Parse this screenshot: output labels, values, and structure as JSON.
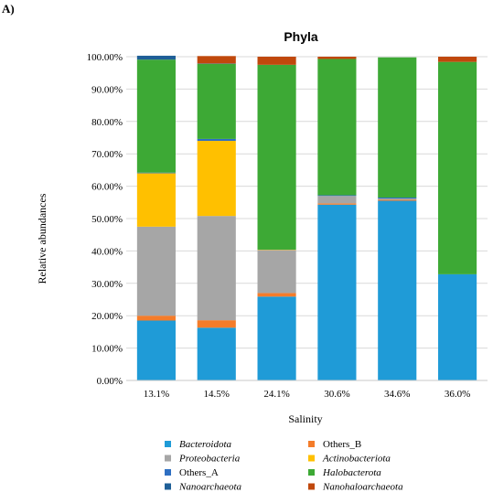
{
  "panel_label": "A)",
  "chart_data": {
    "type": "bar",
    "stacked": true,
    "title": "Phyla",
    "xlabel": "Salinity",
    "ylabel": "Relative abundances",
    "ylim": [
      0,
      100
    ],
    "y_ticks": [
      "0.00%",
      "10.00%",
      "20.00%",
      "30.00%",
      "40.00%",
      "50.00%",
      "60.00%",
      "70.00%",
      "80.00%",
      "90.00%",
      "100.00%"
    ],
    "categories": [
      "13.1%",
      "14.5%",
      "24.1%",
      "30.6%",
      "34.6%",
      "36.0%"
    ],
    "grid": true,
    "legend_position": "bottom",
    "series": [
      {
        "name": "Bacteroidota",
        "italic": true,
        "color": "#1F9BD7",
        "values": [
          18.5,
          16.3,
          25.9,
          54.3,
          55.5,
          32.8
        ]
      },
      {
        "name": "Others_B",
        "italic": false,
        "color": "#F47C2A",
        "values": [
          1.5,
          2.3,
          1.1,
          0.4,
          0.3,
          0.0
        ]
      },
      {
        "name": "Proteobacteria",
        "italic": true,
        "color": "#A6A6A6",
        "values": [
          27.5,
          32.2,
          13.3,
          2.3,
          0.4,
          0.0
        ]
      },
      {
        "name": "Actinobacteriota",
        "italic": true,
        "color": "#FFC000",
        "values": [
          16.5,
          23.2,
          0.1,
          0.0,
          0.0,
          0.0
        ]
      },
      {
        "name": "Others_A",
        "italic": false,
        "color": "#2E6FC2",
        "values": [
          0.2,
          0.6,
          0.0,
          0.2,
          0.3,
          0.0
        ]
      },
      {
        "name": "Halobacterota",
        "italic": true,
        "color": "#3DA935",
        "values": [
          34.9,
          23.2,
          57.1,
          42.1,
          43.3,
          65.6
        ]
      },
      {
        "name": "Nanoarchaeota",
        "italic": true,
        "color": "#1F5F97",
        "values": [
          1.2,
          0.1,
          0.0,
          0.0,
          0.0,
          0.0
        ]
      },
      {
        "name": "Nanohaloarchaeota",
        "italic": true,
        "color": "#C0480C",
        "values": [
          0.0,
          2.3,
          2.5,
          0.7,
          0.0,
          1.6
        ]
      }
    ]
  }
}
